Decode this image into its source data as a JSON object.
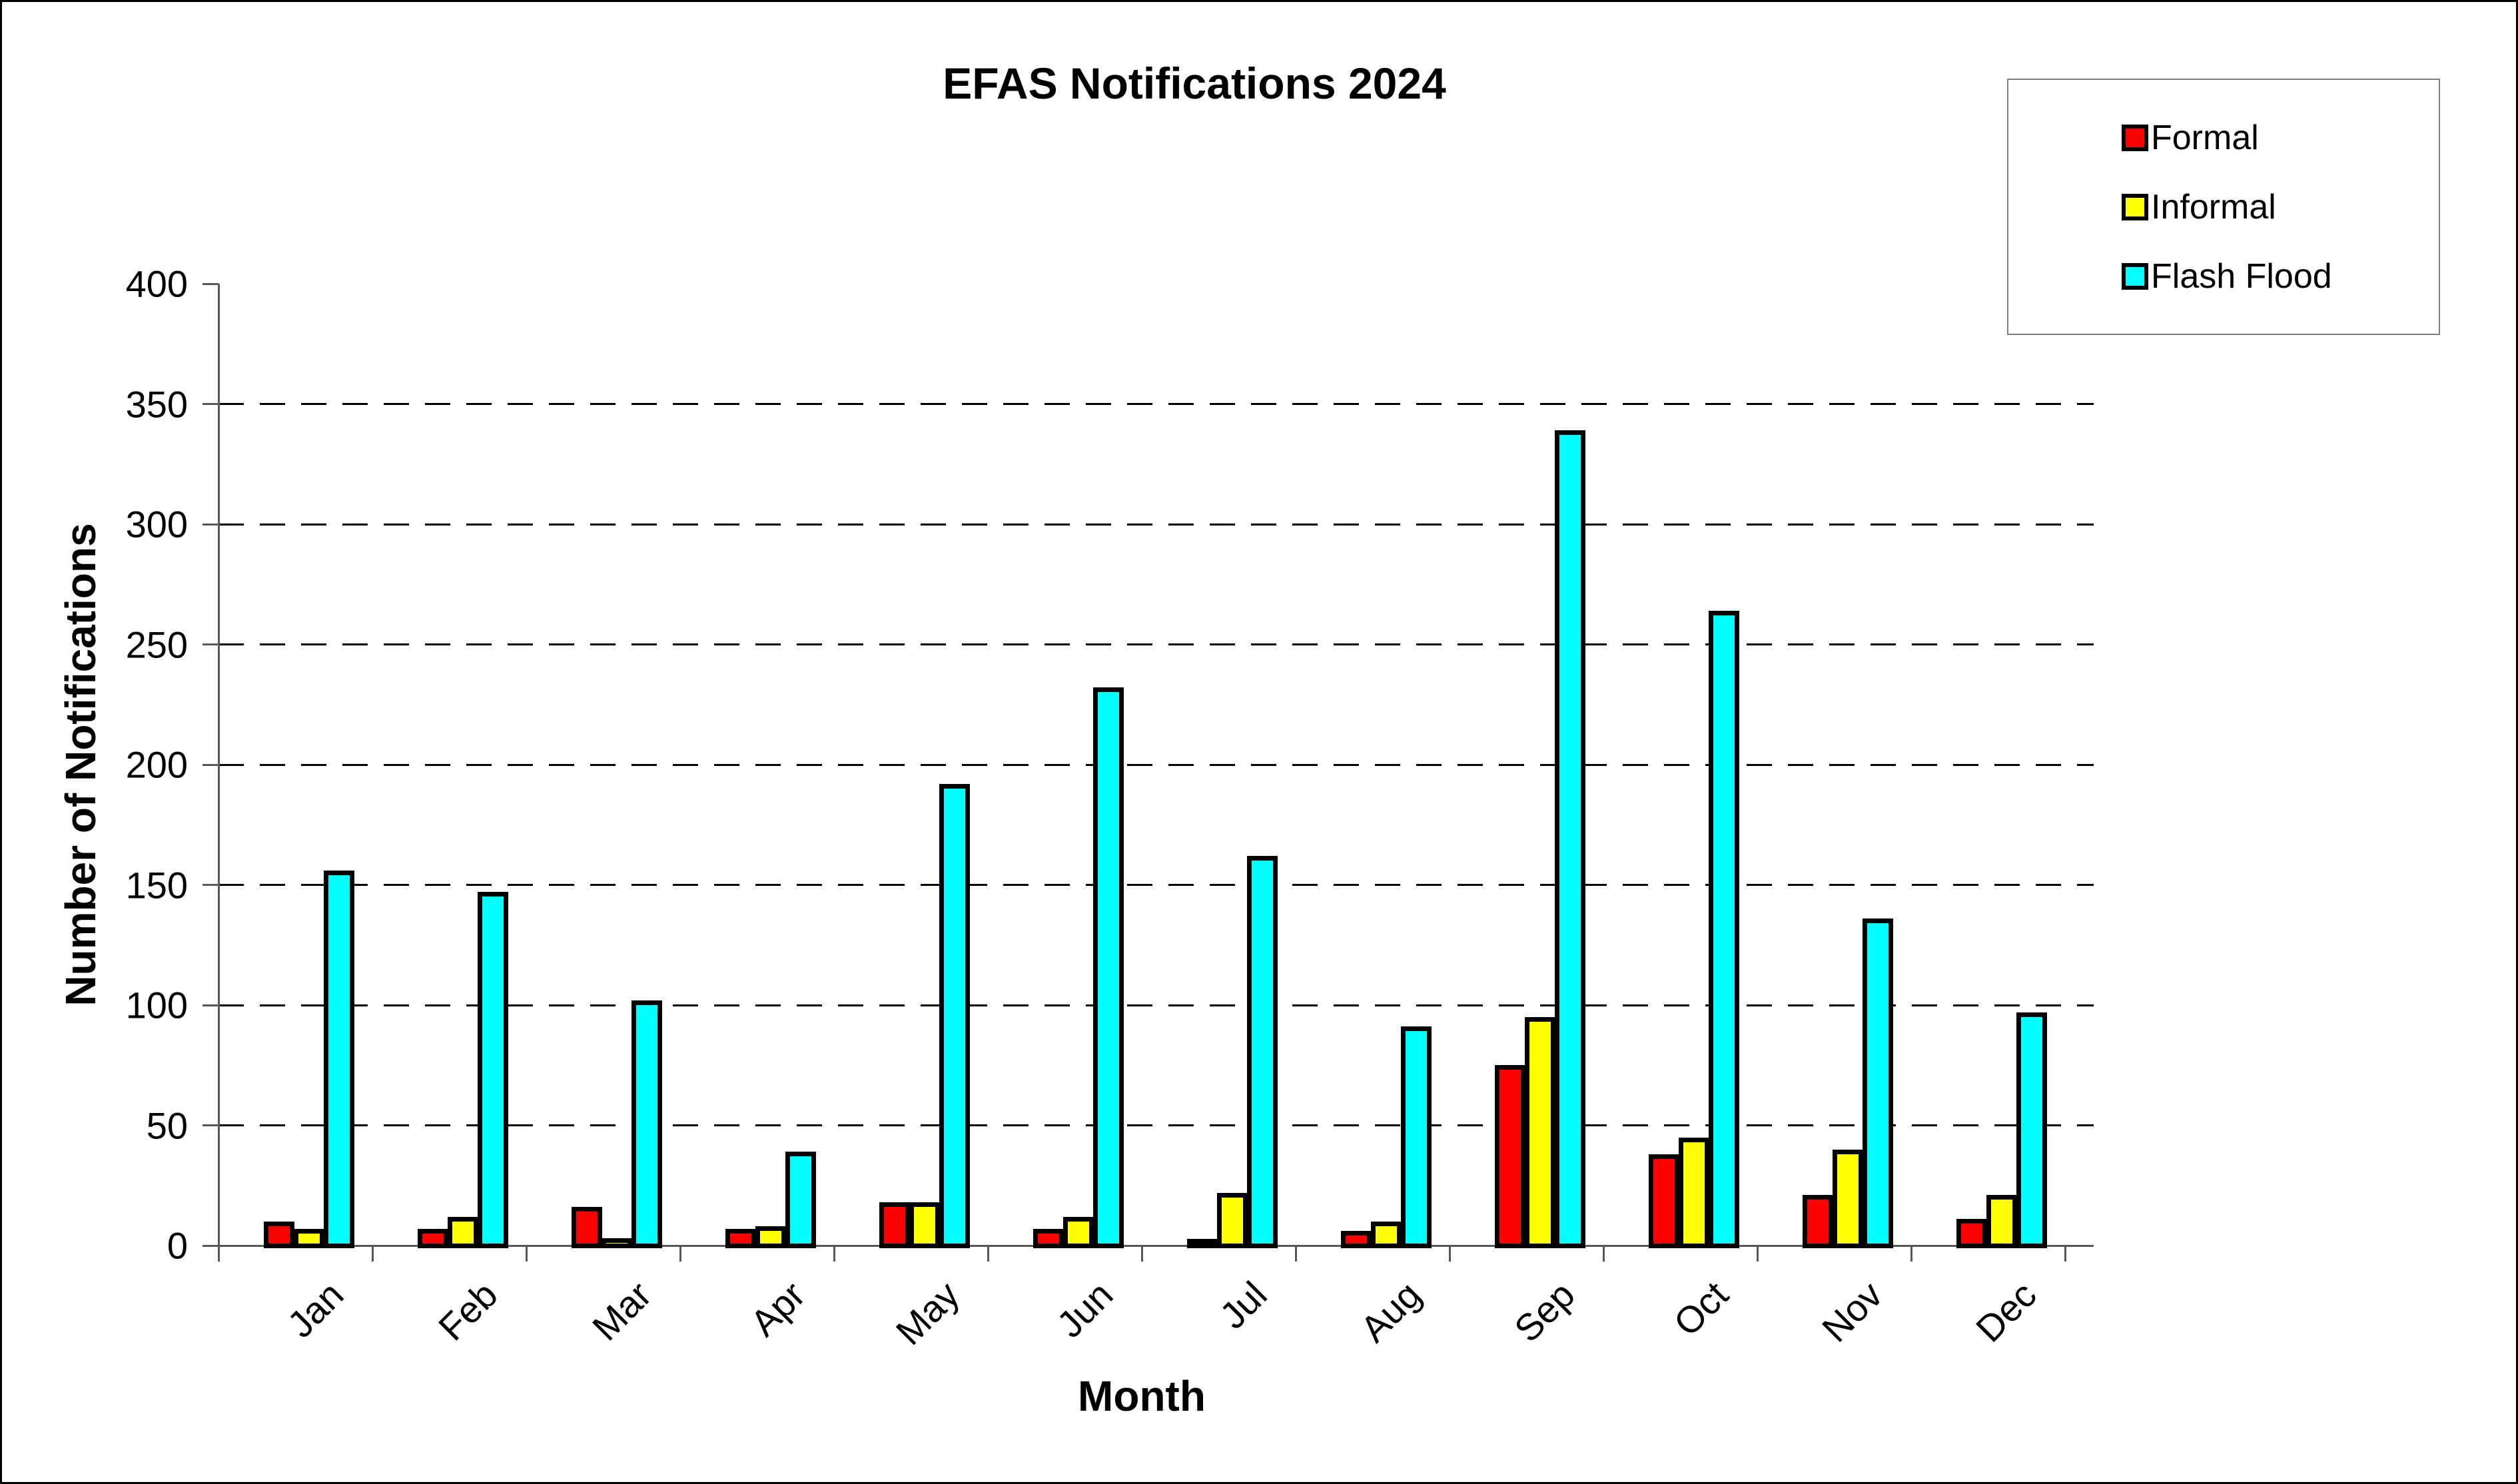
{
  "chart": {
    "title": "EFAS Notifications 2024",
    "x_title": "Month",
    "y_title": "Number of Notifications"
  },
  "legend": {
    "items": [
      {
        "label": "Formal",
        "color": "#FF0000"
      },
      {
        "label": "Informal",
        "color": "#FFFF00"
      },
      {
        "label": "Flash Flood",
        "color": "#00FFFF"
      }
    ]
  },
  "chart_data": {
    "type": "bar",
    "title": "EFAS Notifications 2024",
    "xlabel": "Month",
    "ylabel": "Number of Notifications",
    "categories": [
      "Jan",
      "Feb",
      "Mar",
      "Apr",
      "May",
      "Jun",
      "Jul",
      "Aug",
      "Sep",
      "Oct",
      "Nov",
      "Dec"
    ],
    "series": [
      {
        "name": "Formal",
        "color": "#FF0000",
        "values": [
          10,
          7,
          16,
          7,
          18,
          7,
          2,
          6,
          75,
          38,
          21,
          11
        ]
      },
      {
        "name": "Informal",
        "color": "#FFFF00",
        "values": [
          7,
          12,
          3,
          8,
          18,
          12,
          22,
          10,
          95,
          45,
          40,
          21
        ]
      },
      {
        "name": "Flash Flood",
        "color": "#00FFFF",
        "values": [
          156,
          147,
          102,
          39,
          192,
          232,
          162,
          91,
          339,
          264,
          136,
          97
        ]
      }
    ],
    "ylim": [
      0,
      400
    ],
    "ytick_step": 50,
    "grid": "horizontal dashed at 50..350, none at 400",
    "legend_position": "top-right",
    "bar_border_color": "#000000",
    "background": "#FFFFFF"
  }
}
